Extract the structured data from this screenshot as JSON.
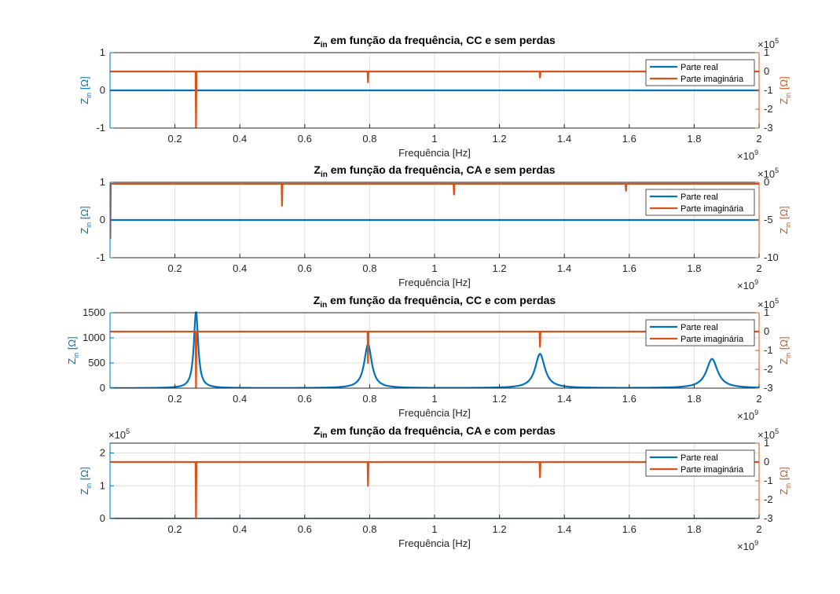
{
  "chart_data": [
    {
      "type": "line",
      "title_main": "Z",
      "title_sub": "in",
      "title_rest": " em função da frequência, CC e sem perdas",
      "xlabel": "Frequência [Hz]",
      "x_exponent": "9",
      "xlim": [
        0,
        2
      ],
      "xticks": [
        "0.2",
        "0.4",
        "0.6",
        "0.8",
        "1",
        "1.2",
        "1.4",
        "1.6",
        "1.8",
        "2"
      ],
      "ylabel_left_main": "Z",
      "ylabel_left_sub": "in",
      "ylabel_left_unit": " [Ω]",
      "ylim_left": [
        -1,
        1
      ],
      "yticks_left": [
        -1,
        0,
        1
      ],
      "y_exponent_left": "",
      "ylabel_right_main": "Z",
      "ylabel_right_sub": "in",
      "ylabel_right_unit": " [Ω]",
      "ylim_right": [
        -3,
        1
      ],
      "yticks_right": [
        -3,
        -2,
        -1,
        0,
        1
      ],
      "y_exponent_right": "5",
      "grid": true,
      "legend_position": "top-right",
      "series": [
        {
          "name": "Parte real",
          "axis": "left",
          "color": "#0072BD",
          "kind": "baseline",
          "baseline": 0,
          "peaks": []
        },
        {
          "name": "Parte imaginária",
          "axis": "right",
          "color": "#D95319",
          "kind": "spikes",
          "baseline": 0,
          "spikes": [
            {
              "x": 0.265,
              "y": -3
            },
            {
              "x": 0.795,
              "y": -0.6
            },
            {
              "x": 1.325,
              "y": -0.35
            }
          ]
        }
      ]
    },
    {
      "type": "line",
      "title_main": "Z",
      "title_sub": "in",
      "title_rest": " em função da frequência, CA e sem perdas",
      "xlabel": "Frequência [Hz]",
      "x_exponent": "9",
      "xlim": [
        0,
        2
      ],
      "xticks": [
        "0.2",
        "0.4",
        "0.6",
        "0.8",
        "1",
        "1.2",
        "1.4",
        "1.6",
        "1.8",
        "2"
      ],
      "ylabel_left_main": "Z",
      "ylabel_left_sub": "in",
      "ylabel_left_unit": " [Ω]",
      "ylim_left": [
        -1,
        1
      ],
      "yticks_left": [
        -1,
        0,
        1
      ],
      "y_exponent_left": "",
      "ylabel_right_main": "Z",
      "ylabel_right_sub": "in",
      "ylabel_right_unit": " [Ω]",
      "ylim_right": [
        -10,
        0
      ],
      "yticks_right": [
        -10,
        -5,
        0
      ],
      "y_exponent_right": "5",
      "grid": true,
      "legend_position": "top-right",
      "series": [
        {
          "name": "Parte real",
          "axis": "left",
          "color": "#0072BD",
          "kind": "baseline",
          "baseline": 0,
          "peaks": []
        },
        {
          "name": "Parte imaginária",
          "axis": "right",
          "color": "#D95319",
          "kind": "spikes",
          "baseline": -0.2,
          "spikes": [
            {
              "x": 0.001,
              "y": -7.5
            },
            {
              "x": 0.53,
              "y": -3.2
            },
            {
              "x": 1.06,
              "y": -1.7
            },
            {
              "x": 1.59,
              "y": -1.2
            }
          ]
        }
      ]
    },
    {
      "type": "line",
      "title_main": "Z",
      "title_sub": "in",
      "title_rest": " em função da frequência, CC e com perdas",
      "xlabel": "Frequência [Hz]",
      "x_exponent": "9",
      "xlim": [
        0,
        2
      ],
      "xticks": [
        "0.2",
        "0.4",
        "0.6",
        "0.8",
        "1",
        "1.2",
        "1.4",
        "1.6",
        "1.8",
        "2"
      ],
      "ylabel_left_main": "Z",
      "ylabel_left_sub": "in",
      "ylabel_left_unit": " [Ω]",
      "ylim_left": [
        0,
        1500
      ],
      "yticks_left": [
        0,
        500,
        1000,
        1500
      ],
      "y_exponent_left": "",
      "ylabel_right_main": "Z",
      "ylabel_right_sub": "in",
      "ylabel_right_unit": " [Ω]",
      "ylim_right": [
        -3,
        1
      ],
      "yticks_right": [
        -3,
        -2,
        -1,
        0,
        1
      ],
      "y_exponent_right": "5",
      "grid": true,
      "legend_position": "top-right",
      "series": [
        {
          "name": "Parte real",
          "axis": "left",
          "color": "#0072BD",
          "kind": "peaks",
          "baseline": 0,
          "peaks": [
            {
              "x": 0.265,
              "y": 1520,
              "w": 0.008
            },
            {
              "x": 0.795,
              "y": 870,
              "w": 0.014
            },
            {
              "x": 1.325,
              "y": 680,
              "w": 0.018
            },
            {
              "x": 1.855,
              "y": 580,
              "w": 0.021
            }
          ]
        },
        {
          "name": "Parte imaginária",
          "axis": "right",
          "color": "#D95319",
          "kind": "spikes",
          "baseline": 0,
          "spikes": [
            {
              "x": 0.265,
              "y": -3
            },
            {
              "x": 0.795,
              "y": -1.7
            },
            {
              "x": 1.325,
              "y": -0.85
            }
          ]
        }
      ]
    },
    {
      "type": "line",
      "title_main": "Z",
      "title_sub": "in",
      "title_rest": " em função da frequência, CA e com perdas",
      "xlabel": "Frequência [Hz]",
      "x_exponent": "9",
      "xlim": [
        0,
        2
      ],
      "xticks": [
        "0.2",
        "0.4",
        "0.6",
        "0.8",
        "1",
        "1.2",
        "1.4",
        "1.6",
        "1.8",
        "2"
      ],
      "ylabel_left_main": "Z",
      "ylabel_left_sub": "in",
      "ylabel_left_unit": " [Ω]",
      "ylim_left": [
        0,
        2.3
      ],
      "yticks_left": [
        0,
        1,
        2
      ],
      "y_exponent_left": "5",
      "ylabel_right_main": "Z",
      "ylabel_right_sub": "in",
      "ylabel_right_unit": " [Ω]",
      "ylim_right": [
        -3,
        1
      ],
      "yticks_right": [
        -3,
        -2,
        -1,
        0,
        1
      ],
      "y_exponent_right": "5",
      "grid": true,
      "legend_position": "top-right",
      "series": [
        {
          "name": "Parte real",
          "axis": "left",
          "color": "#0072BD",
          "kind": "baseline",
          "baseline": 0,
          "peaks": []
        },
        {
          "name": "Parte imaginária",
          "axis": "right",
          "color": "#D95319",
          "kind": "spikes",
          "baseline": 0,
          "spikes": [
            {
              "x": 0.265,
              "y": -3
            },
            {
              "x": 0.795,
              "y": -1.3
            },
            {
              "x": 1.325,
              "y": -0.85
            }
          ]
        }
      ]
    }
  ],
  "colors": {
    "real": "#0072BD",
    "imag": "#D95319"
  }
}
